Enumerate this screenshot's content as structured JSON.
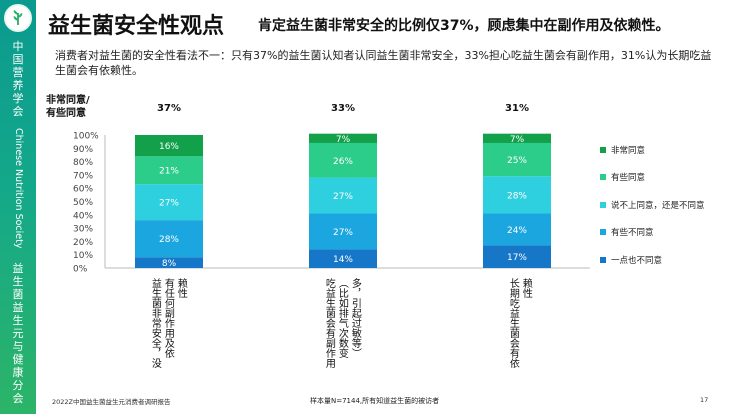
{
  "sidebar": {
    "org_cn": "中国营养学会",
    "org_en": "Chinese Nutrition Society",
    "branch": "益生菌益生元与健康分会"
  },
  "header": {
    "title": "益生菌安全性观点",
    "subtitle": "肯定益生菌非常安全的比例仅37%，顾虑集中在副作用及依赖性。"
  },
  "description": "消费者对益生菌的安全性看法不一：只有37%的益生菌认知者认同益生菌非常安全，33%担心吃益生菌会有副作用，31%认为长期吃益生菌会有依赖性。",
  "footer": {
    "source": "2022Z中国益生菌益生元消费者调研报告",
    "sample_note": "样本量N=7144,所有知道益生菌的被访者",
    "page": "17"
  },
  "colors": {
    "非常同意": "#13a04b",
    "有些同意": "#2ccc8b",
    "说不上同意，还是不同意": "#2ed0df",
    "有些不同意": "#1ba6e0",
    "一点也不同意": "#1676c8"
  },
  "chart_data": {
    "type": "bar",
    "stacked": true,
    "top_summary_label": "非常同意/\n有些同意",
    "categories": [
      "益生菌非常安全，没有任何副作用及依赖性",
      "吃益生菌会有副作用（比如排气次数变多，引起过敏等）",
      "长期吃益生菌会有依赖性"
    ],
    "summary": [
      "37%",
      "33%",
      "31%"
    ],
    "series": [
      {
        "name": "一点也不同意",
        "values": [
          8,
          14,
          17
        ]
      },
      {
        "name": "有些不同意",
        "values": [
          28,
          27,
          24
        ]
      },
      {
        "name": "说不上同意，还是不同意",
        "values": [
          27,
          27,
          28
        ]
      },
      {
        "name": "有些同意",
        "values": [
          21,
          26,
          25
        ]
      },
      {
        "name": "非常同意",
        "values": [
          16,
          7,
          7
        ]
      }
    ],
    "yticks": [
      "0%",
      "10%",
      "20%",
      "30%",
      "40%",
      "50%",
      "60%",
      "70%",
      "80%",
      "90%",
      "100%"
    ],
    "ylim": [
      0,
      100
    ],
    "legend_position": "right",
    "legend_order": [
      "非常同意",
      "有些同意",
      "说不上同意，还是不同意",
      "有些不同意",
      "一点也不同意"
    ]
  }
}
